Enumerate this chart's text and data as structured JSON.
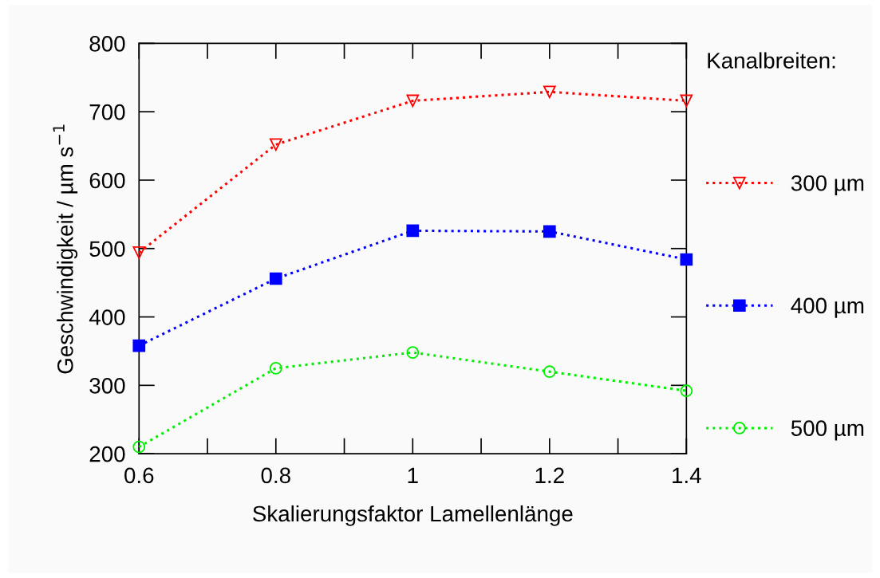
{
  "chart_data": {
    "type": "line",
    "xlabel": "Skalierungsfaktor Lamellenlänge",
    "ylabel": "Geschwindigkeit / µm s$^{−1}$",
    "legend_title": "Kanalbreiten:",
    "x": [
      0.6,
      0.8,
      1.0,
      1.2,
      1.4
    ],
    "series": [
      {
        "name": "300 µm",
        "color": "#ff0000",
        "marker": "triangle",
        "values": [
          494,
          652,
          716,
          729,
          716
        ]
      },
      {
        "name": "400 µm",
        "color": "#0000ff",
        "marker": "square",
        "values": [
          358,
          456,
          526,
          525,
          484
        ]
      },
      {
        "name": "500 µm",
        "color": "#00ee00",
        "marker": "circle",
        "values": [
          210,
          325,
          348,
          320,
          292
        ]
      }
    ],
    "xlim": [
      0.6,
      1.4
    ],
    "ylim": [
      200,
      800
    ],
    "xticks": [
      0.6,
      0.8,
      {
        "value": 1.0,
        "label": "1"
      },
      1.2,
      1.4
    ],
    "yticks": [
      200,
      300,
      400,
      500,
      600,
      700,
      800
    ],
    "grid": false,
    "legend": "right",
    "line_style": "dotted"
  }
}
